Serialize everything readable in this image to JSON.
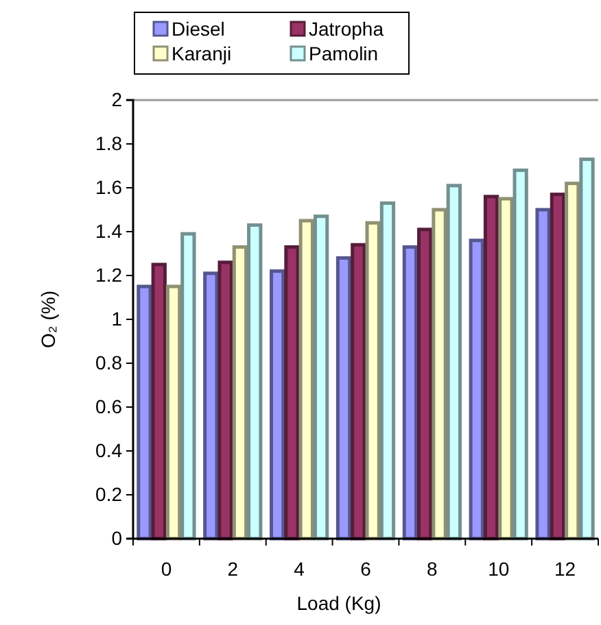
{
  "chart_data": {
    "type": "bar",
    "xlabel": "Load (Kg)",
    "ylabel": "O₂ (%)",
    "categories": [
      "0",
      "2",
      "4",
      "6",
      "8",
      "10",
      "12"
    ],
    "series": [
      {
        "name": "Diesel",
        "color": "#9999ff",
        "values": [
          1.15,
          1.21,
          1.22,
          1.28,
          1.33,
          1.36,
          1.5
        ]
      },
      {
        "name": "Jatropha",
        "color": "#993366",
        "values": [
          1.25,
          1.26,
          1.33,
          1.34,
          1.41,
          1.56,
          1.57
        ]
      },
      {
        "name": "Karanji",
        "color": "#ffffcc",
        "values": [
          1.15,
          1.33,
          1.45,
          1.44,
          1.5,
          1.55,
          1.62
        ]
      },
      {
        "name": "Pamolin",
        "color": "#ccffff",
        "values": [
          1.39,
          1.43,
          1.47,
          1.53,
          1.61,
          1.68,
          1.73
        ]
      }
    ],
    "ylim": [
      0,
      2
    ],
    "yticks": [
      0,
      {
        "value": 0.2,
        "label": "0.2"
      },
      {
        "value": 0.4,
        "label": "0.4"
      },
      {
        "value": 0.6,
        "label": "0.6"
      },
      {
        "value": 0.8,
        "label": "0.8"
      },
      1,
      {
        "value": 1.2,
        "label": "1.2"
      },
      {
        "value": 1.4,
        "label": "1.4"
      },
      {
        "value": 1.6,
        "label": "1.6"
      },
      {
        "value": 1.8,
        "label": "1.8"
      },
      2
    ],
    "grid": false,
    "legend": "top"
  }
}
